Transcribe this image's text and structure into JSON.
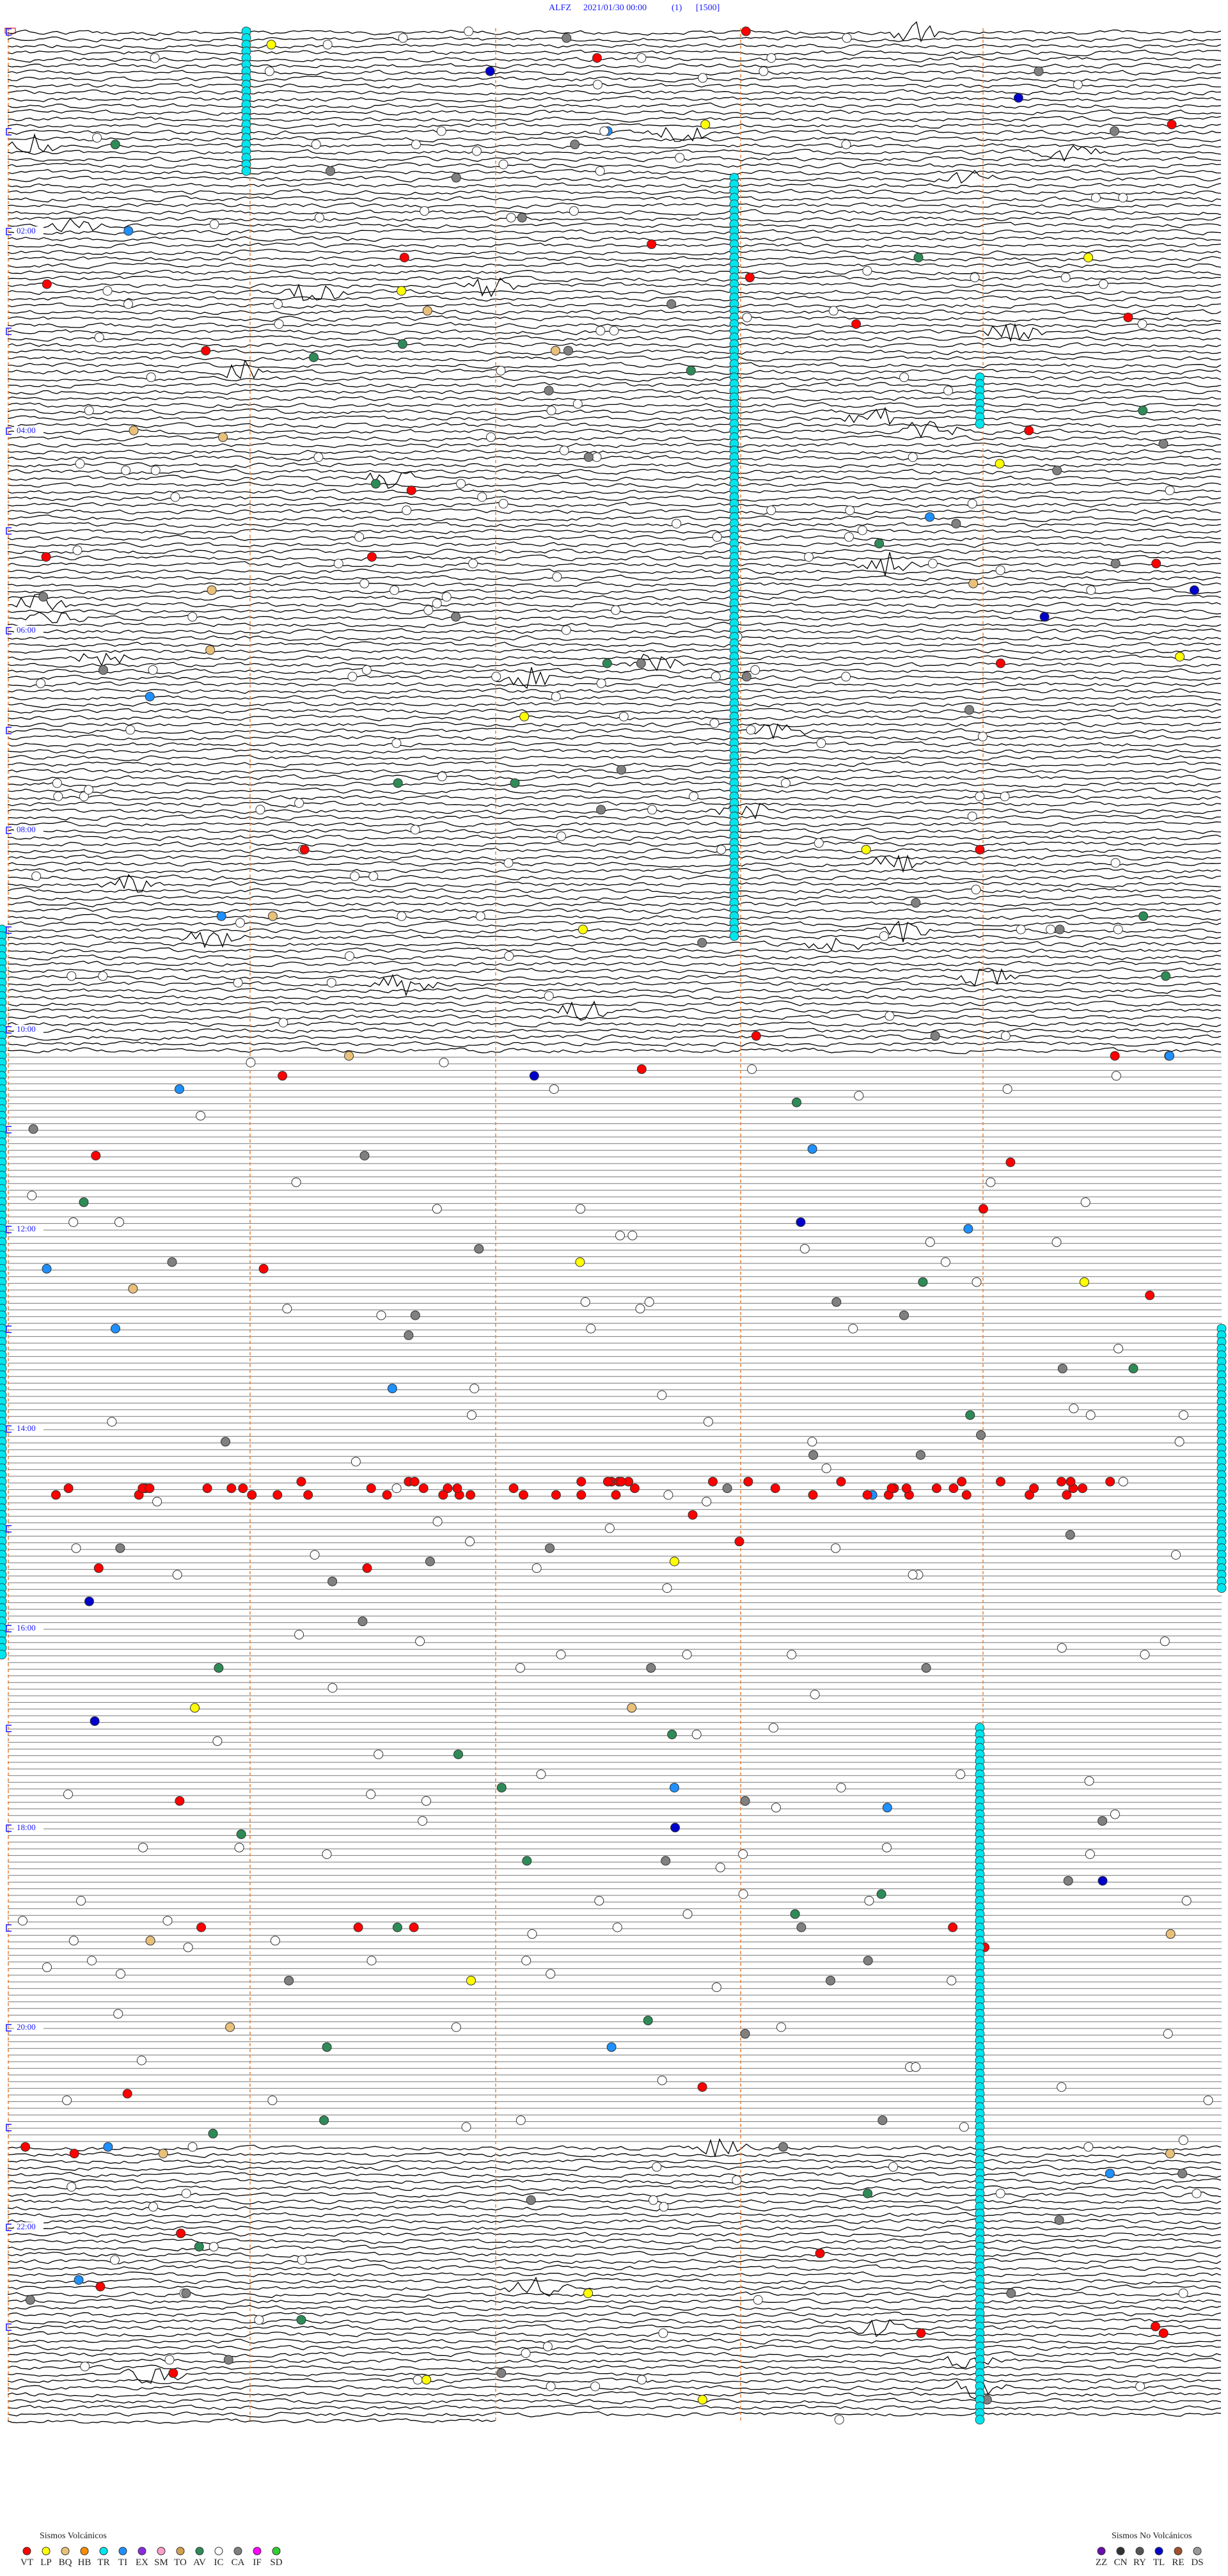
{
  "header": {
    "station": "ALFZ",
    "datetime": "2021/01/30 00:00",
    "channel": "(1)",
    "scale": "[1500]"
  },
  "time_labels": [
    "02:00",
    "04:00",
    "06:00",
    "08:00",
    "10:00",
    "12:00",
    "14:00",
    "16:00",
    "18:00",
    "20:00",
    "22:00"
  ],
  "legend": {
    "volcanic": {
      "title": "Sismos Volcánicos",
      "items": [
        {
          "label": "VT",
          "color": "#ff0000"
        },
        {
          "label": "LP",
          "color": "#ffff00"
        },
        {
          "label": "BQ",
          "color": "#e8c07a"
        },
        {
          "label": "HB",
          "color": "#ff8c00"
        },
        {
          "label": "TR",
          "color": "#00e5ee"
        },
        {
          "label": "TI",
          "color": "#1e90ff"
        },
        {
          "label": "EX",
          "color": "#8a2be2"
        },
        {
          "label": "SM",
          "color": "#ff9ec8"
        },
        {
          "label": "TO",
          "color": "#d2a050"
        },
        {
          "label": "AV",
          "color": "#2e8b57"
        },
        {
          "label": "IC",
          "color": "#ffffff"
        },
        {
          "label": "CA",
          "color": "#808080"
        },
        {
          "label": "IF",
          "color": "#ff00ff"
        },
        {
          "label": "SD",
          "color": "#32cd32"
        }
      ]
    },
    "non_volcanic": {
      "title": "Sismos No Volcánicos",
      "items": [
        {
          "label": "ZZ",
          "color": "#6a0dad"
        },
        {
          "label": "CN",
          "color": "#333333"
        },
        {
          "label": "RY",
          "color": "#555555"
        },
        {
          "label": "TL",
          "color": "#0000cc"
        },
        {
          "label": "RE",
          "color": "#a0522d"
        },
        {
          "label": "DS",
          "color": "#999999"
        }
      ]
    }
  }
}
